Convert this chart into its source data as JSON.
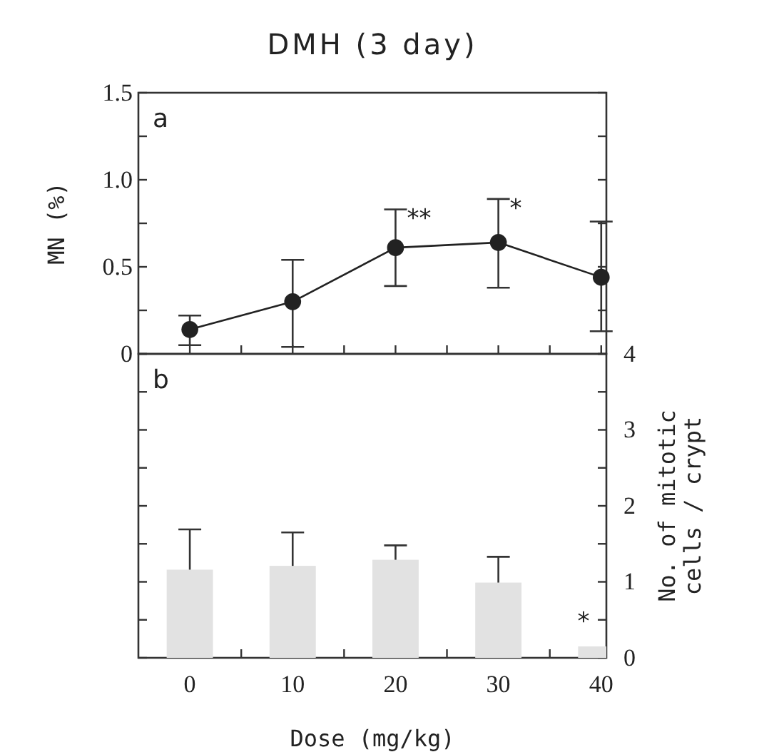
{
  "chart_data": [
    {
      "type": "line",
      "title": "DMH (3 day)",
      "ylabel": "MN (%)",
      "x": [
        0,
        10,
        20,
        30,
        40
      ],
      "series": [
        {
          "color": "#222222",
          "values": [
            0.14,
            0.3,
            0.61,
            0.64,
            0.44
          ],
          "errors": [
            [
              0.05,
              0.22
            ],
            [
              0.04,
              0.54
            ],
            [
              0.39,
              0.83
            ],
            [
              0.38,
              0.89
            ],
            [
              0.13,
              0.76
            ]
          ]
        }
      ],
      "marker": "circle",
      "line_style": "solid",
      "xlim": [
        -5,
        40.5
      ],
      "xticks": [
        {
          "value": 0,
          "label": null
        },
        {
          "value": 5,
          "label": null
        },
        {
          "value": 10,
          "label": null
        },
        {
          "value": 15,
          "label": null
        },
        {
          "value": 20,
          "label": null
        },
        {
          "value": 25,
          "label": null
        },
        {
          "value": 30,
          "label": null
        },
        {
          "value": 35,
          "label": null
        },
        {
          "value": 40,
          "label": null
        }
      ],
      "ylim": [
        0,
        1.5
      ],
      "yticks": [
        0,
        {
          "value": 0.25,
          "label": null
        },
        0.5,
        {
          "value": 0.75,
          "label": null
        },
        {
          "value": 1,
          "label": "1.0"
        },
        {
          "value": 1.25,
          "label": null
        },
        1.5
      ],
      "tick_labels": "y",
      "grid": false,
      "annotations": [
        "a",
        {
          "text": "**",
          "x": 20,
          "y": 0.83
        },
        {
          "text": "*",
          "x": 30,
          "y": 0.89
        }
      ]
    },
    {
      "type": "bar",
      "xlabel": "Dose (mg/kg)",
      "y2label": "No. of mitotic\ncells / crypt",
      "x": [
        0,
        10,
        20,
        30,
        40
      ],
      "series": [
        {
          "color": "#e2e2e2",
          "axis": "y2",
          "values": [
            1.16,
            1.21,
            1.29,
            0.99,
            0.15
          ],
          "errors": [
            [
              1.16,
              1.69
            ],
            [
              1.21,
              1.65
            ],
            [
              1.29,
              1.48
            ],
            [
              0.99,
              1.33
            ],
            null
          ]
        }
      ],
      "xlim": [
        -5,
        40.5
      ],
      "xticks": [
        0,
        {
          "value": 5,
          "label": null
        },
        10,
        {
          "value": 15,
          "label": null
        },
        20,
        {
          "value": 25,
          "label": null
        },
        30,
        {
          "value": 35,
          "label": null
        },
        40
      ],
      "y2lim": [
        0,
        4
      ],
      "y2ticks": [
        0,
        {
          "value": 0.5,
          "label": null
        },
        1,
        {
          "value": 1.5,
          "label": null
        },
        2,
        {
          "value": 2.5,
          "label": null
        },
        3,
        {
          "value": 3.5,
          "label": null
        },
        4
      ],
      "grid": false,
      "annotations": [
        "b",
        "*"
      ]
    }
  ]
}
